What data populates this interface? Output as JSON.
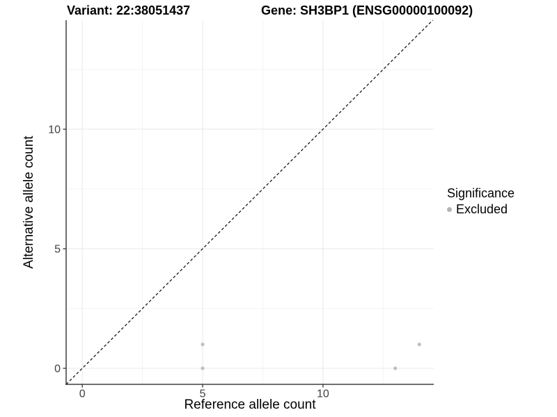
{
  "chart_data": {
    "type": "scatter",
    "title_left": "Variant: 22:38051437",
    "title_right": "Gene: SH3BP1 (ENSG00000100092)",
    "xlabel": "Reference allele count",
    "ylabel": "Alternative allele count",
    "xlim": [
      -0.67,
      14.6
    ],
    "ylim": [
      -0.67,
      14.56
    ],
    "x_ticks": [
      0,
      5,
      10
    ],
    "y_ticks": [
      0,
      5,
      10
    ],
    "x_minor_ticks": [
      2.5,
      7.5,
      12.5
    ],
    "y_minor_ticks": [
      2.5,
      7.5,
      12.5
    ],
    "grid": "major and minor, light grey on white",
    "identity_line": {
      "equation": "y = x",
      "style": "dashed",
      "color": "#1a1a1a"
    },
    "series": [
      {
        "name": "Excluded",
        "color": "#bfbfbf",
        "point_radius": 2.6,
        "points": [
          [
            5,
            0
          ],
          [
            5,
            1
          ],
          [
            13,
            0
          ],
          [
            14,
            1
          ]
        ]
      }
    ],
    "legend": {
      "title": "Significance",
      "position": "right",
      "items": [
        {
          "label": "Excluded",
          "color": "#b4b4b4"
        }
      ]
    }
  },
  "colors": {
    "background": "#ffffff",
    "grid_major": "#e8e8e8",
    "grid_minor": "#f4f4f4",
    "axis_line": "#3f3f3f",
    "tick_label": "#404040",
    "text": "#000000"
  }
}
